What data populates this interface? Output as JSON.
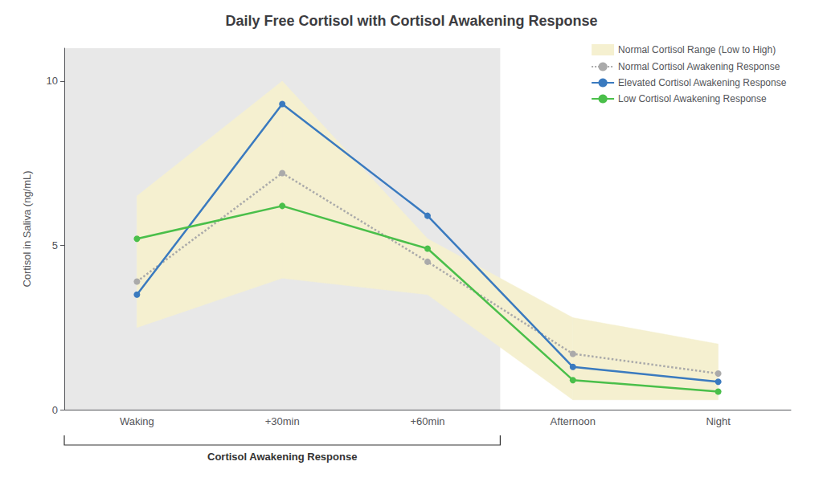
{
  "chart_data": {
    "type": "line",
    "title": "Daily Free Cortisol with Cortisol Awakening Response",
    "y_label": "Cortisol in Saliva (ng/mL)",
    "categories": [
      "Waking",
      "+30min",
      "+60min",
      "Afternoon",
      "Night"
    ],
    "ylim": [
      0,
      11
    ],
    "yticks": [
      0,
      5,
      10
    ],
    "grid": false,
    "legend": "upper right",
    "band": {
      "name": "Normal Cortisol Range (Low to High)",
      "color": "#f5f0d0",
      "low": [
        2.5,
        4.0,
        3.5,
        0.3,
        0.3
      ],
      "high": [
        6.5,
        10.0,
        5.2,
        2.8,
        2.0
      ]
    },
    "series": [
      {
        "name": "Normal Cortisol Awakening Response",
        "color": "#aaaaaa",
        "line_style": "dotted",
        "marker": "circle",
        "values": [
          3.9,
          7.2,
          4.5,
          1.7,
          1.1
        ]
      },
      {
        "name": "Elevated Cortisol Awakening Response",
        "color": "#3a7abf",
        "line_style": "solid",
        "marker": "circle",
        "values": [
          3.5,
          9.3,
          5.9,
          1.3,
          0.85
        ]
      },
      {
        "name": "Low Cortisol Awakening Response",
        "color": "#4abf4a",
        "line_style": "solid",
        "marker": "circle",
        "values": [
          5.2,
          6.2,
          4.9,
          0.9,
          0.55
        ]
      }
    ],
    "annotations": [
      {
        "text": "Cortisol Awakening Response",
        "from": "Waking",
        "to": "+60min",
        "color": "#e8e8e8"
      }
    ]
  }
}
